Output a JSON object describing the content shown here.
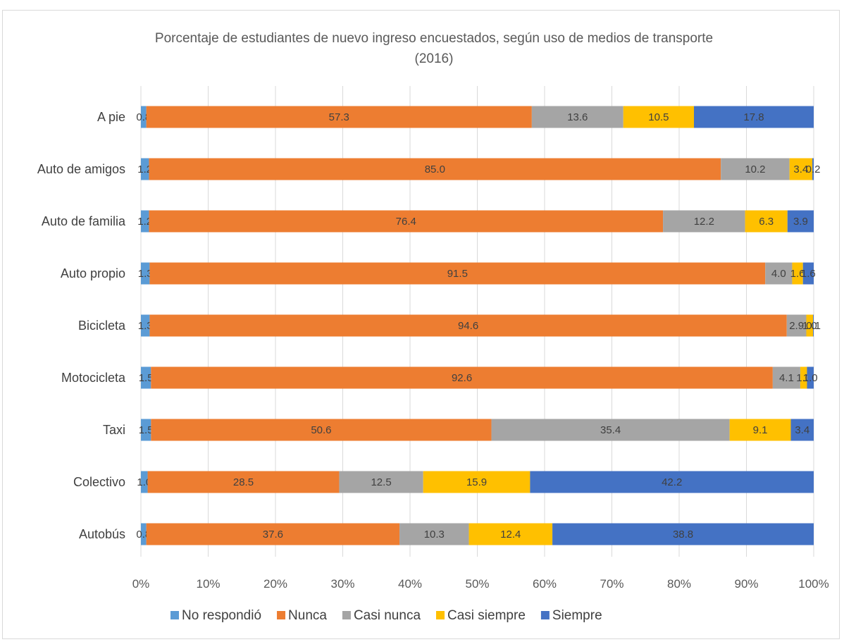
{
  "chart_data": {
    "type": "bar",
    "orientation": "horizontal",
    "stacked": "percent",
    "title": "Porcentaje de estudiantes de nuevo ingreso encuestados, según uso de medios de transporte",
    "subtitle": "(2016)",
    "categories": [
      "A pie",
      "Auto de amigos",
      "Auto de familia",
      "Auto propio",
      "Bicicleta",
      "Motocicleta",
      "Taxi",
      "Colectivo",
      "Autobús"
    ],
    "series": [
      {
        "name": "No respondió",
        "color": "#5b9bd5",
        "values": [
          0.8,
          1.2,
          1.2,
          1.3,
          1.3,
          1.5,
          1.5,
          1.0,
          0.8
        ],
        "labels": [
          "0.8",
          "1.2",
          "1.2",
          "1.3",
          "1.3",
          "1.5",
          "1.5",
          "1.0",
          "0.8"
        ]
      },
      {
        "name": "Nunca",
        "color": "#ed7d31",
        "values": [
          57.3,
          85.0,
          76.4,
          91.5,
          94.6,
          92.6,
          50.6,
          28.5,
          37.6
        ],
        "labels": [
          "57.3",
          "85.0",
          "76.4",
          "91.5",
          "94.6",
          "92.6",
          "50.6",
          "28.5",
          "37.6"
        ]
      },
      {
        "name": "Casi nunca",
        "color": "#a5a5a5",
        "values": [
          13.6,
          10.2,
          12.2,
          4.0,
          2.9,
          4.1,
          35.4,
          12.5,
          10.3
        ],
        "labels": [
          "13.6",
          "10.2",
          "12.2",
          "4.0",
          "2.9",
          "4.1",
          "35.4",
          "12.5",
          "10.3"
        ]
      },
      {
        "name": "Casi siempre",
        "color": "#ffc000",
        "values": [
          10.5,
          3.4,
          6.3,
          1.6,
          1.0,
          1.0,
          9.1,
          15.9,
          12.4
        ],
        "labels": [
          "10.5",
          "3.4",
          "6.3",
          "1.6",
          "1.0",
          "1.0",
          "9.1",
          "15.9",
          "12.4"
        ]
      },
      {
        "name": "Siempre",
        "color": "#4472c4",
        "values": [
          17.8,
          0.2,
          3.9,
          1.6,
          0.1,
          1.0,
          3.4,
          42.2,
          38.8
        ],
        "labels": [
          "17.8",
          "0.2",
          "3.9",
          "1.6",
          "0.1",
          "1.0",
          "3.4",
          "42.2",
          "38.8"
        ]
      }
    ],
    "xlim": [
      0,
      100
    ],
    "x_ticks": [
      "0%",
      "10%",
      "20%",
      "30%",
      "40%",
      "50%",
      "60%",
      "70%",
      "80%",
      "90%",
      "100%"
    ],
    "grid": true,
    "legend": "bottom"
  }
}
